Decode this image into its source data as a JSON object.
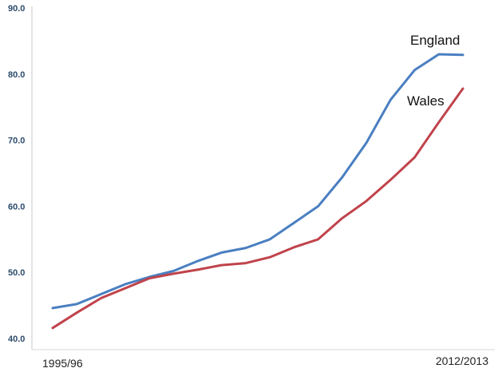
{
  "chart_data": {
    "type": "line",
    "title": "",
    "xlabel": "",
    "ylabel": "",
    "ylim": [
      40,
      90
    ],
    "yticks": [
      "90.0",
      "80.0",
      "70.0",
      "60.0",
      "50.0",
      "40.0"
    ],
    "x_start_label": "1995/96",
    "x_end_label": "2012/2013",
    "grid": false,
    "legend": "inline labels near line ends",
    "series": [
      {
        "name": "England",
        "color": "#4a7fc1",
        "values": [
          44.6,
          45.2,
          46.7,
          48.2,
          49.3,
          50.2,
          51.7,
          53.0,
          53.7,
          55.0,
          57.5,
          60.0,
          64.4,
          69.6,
          76.1,
          80.6,
          83.0,
          82.9
        ]
      },
      {
        "name": "Wales",
        "color": "#c0434b",
        "values": [
          41.6,
          43.9,
          46.1,
          47.6,
          49.1,
          49.8,
          50.4,
          51.1,
          51.4,
          52.3,
          53.8,
          55.0,
          58.2,
          60.8,
          64.0,
          67.4,
          72.7,
          77.8
        ]
      }
    ]
  }
}
